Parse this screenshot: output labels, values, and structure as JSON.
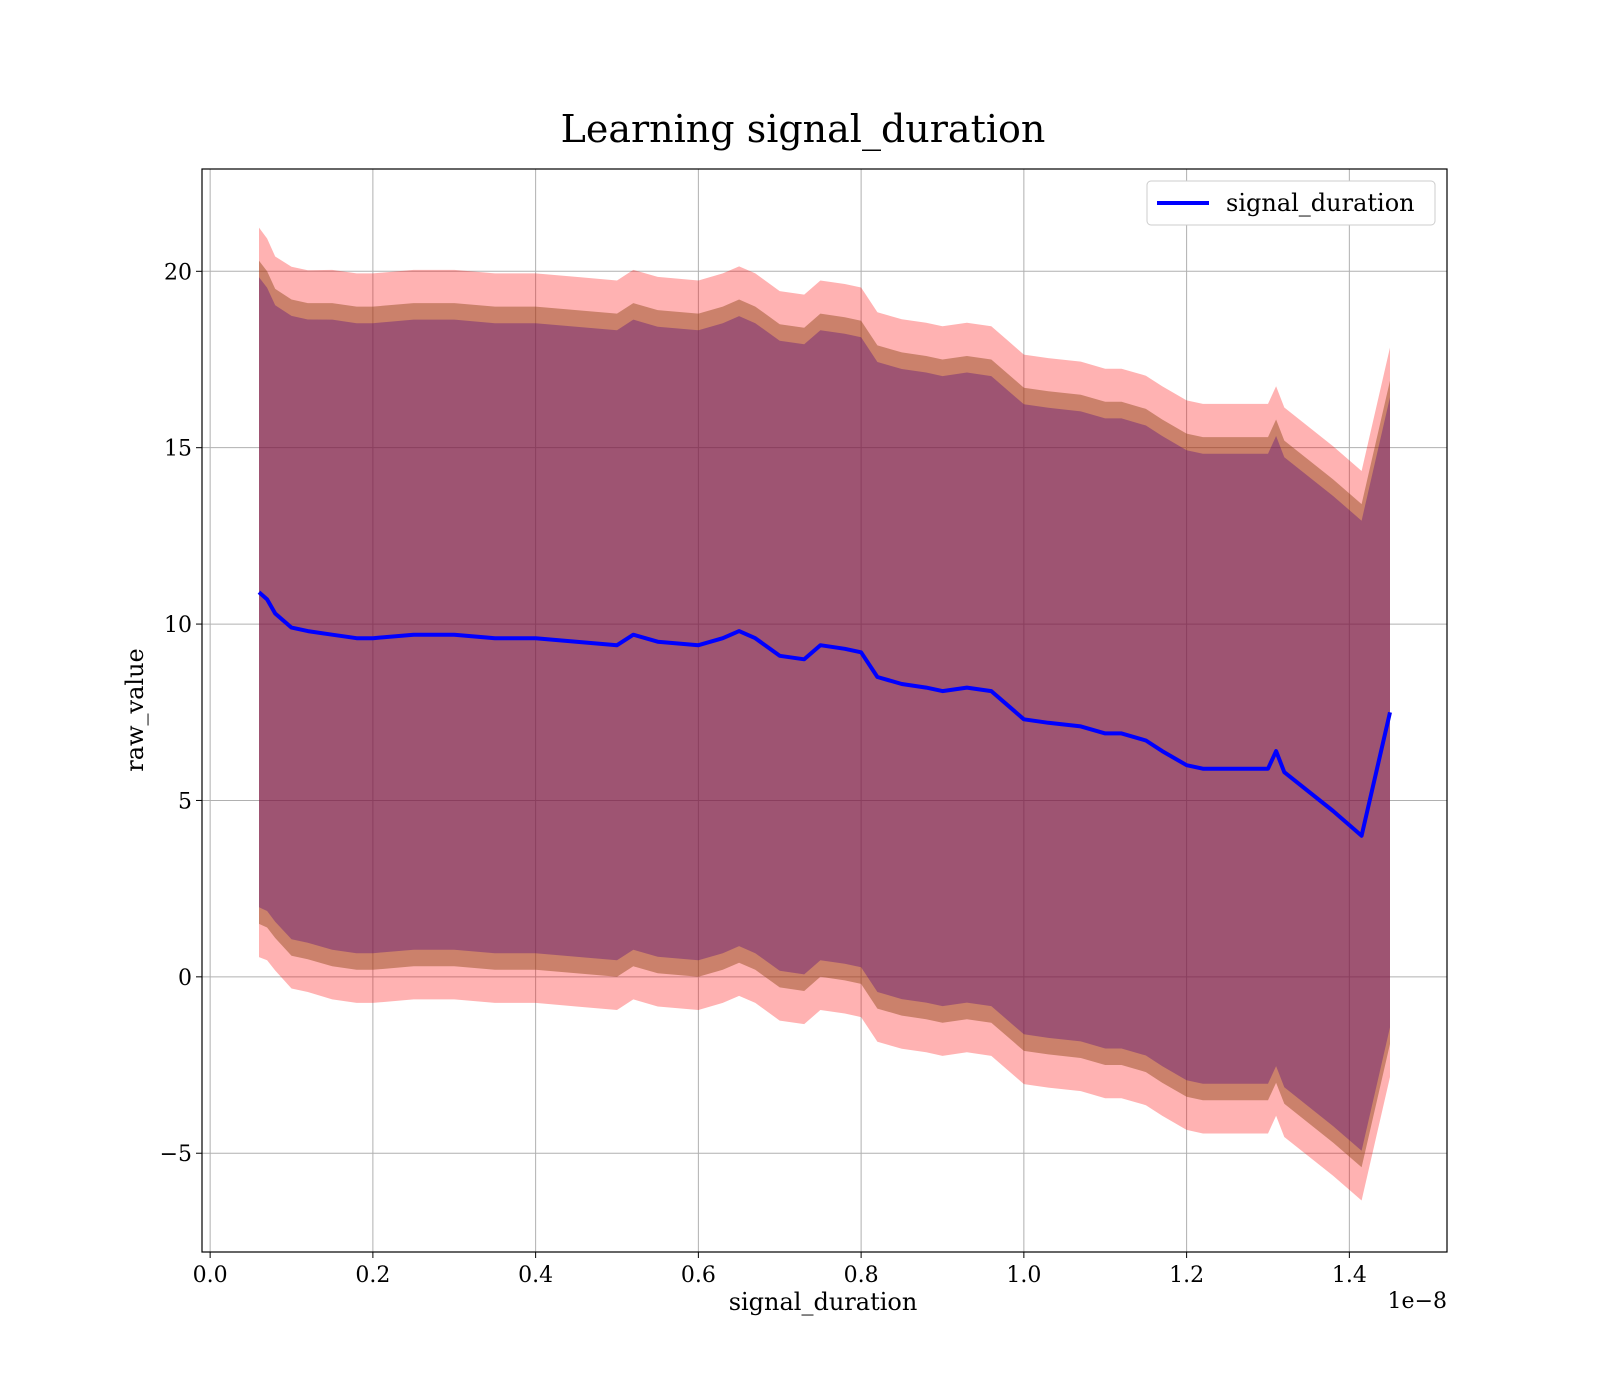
{
  "chart_data": {
    "type": "line",
    "title": "Learning signal_duration",
    "xlabel": "signal_duration",
    "ylabel": "raw_value",
    "x_offset_label": "1e−8",
    "xlim": [
      -0.01,
      1.52
    ],
    "ylim": [
      -7.8,
      22.9
    ],
    "x_ticks": [
      0.0,
      0.2,
      0.4,
      0.6,
      0.8,
      1.0,
      1.2,
      1.4
    ],
    "x_tick_labels": [
      "0.0",
      "0.2",
      "0.4",
      "0.6",
      "0.8",
      "1.0",
      "1.2",
      "1.4"
    ],
    "y_ticks": [
      -5,
      0,
      5,
      10,
      15,
      20
    ],
    "y_tick_labels": [
      "−5",
      "0",
      "5",
      "10",
      "15",
      "20"
    ],
    "grid": true,
    "legend": {
      "position": "top-right",
      "entries": [
        "signal_duration"
      ]
    },
    "colors": {
      "line": "#0000ff",
      "band_outer": "#ff0000",
      "band_middle": "#8b4513",
      "band_inner": "#4b0082",
      "grid": "#b0b0b0"
    },
    "series": [
      {
        "name": "signal_duration",
        "x": [
          0.06,
          0.07,
          0.08,
          0.1,
          0.12,
          0.15,
          0.18,
          0.2,
          0.25,
          0.3,
          0.35,
          0.4,
          0.45,
          0.5,
          0.52,
          0.55,
          0.6,
          0.63,
          0.65,
          0.67,
          0.7,
          0.73,
          0.75,
          0.78,
          0.8,
          0.82,
          0.85,
          0.88,
          0.9,
          0.93,
          0.96,
          0.98,
          1.0,
          1.03,
          1.07,
          1.1,
          1.12,
          1.15,
          1.17,
          1.2,
          1.22,
          1.25,
          1.27,
          1.3,
          1.31,
          1.32,
          1.38,
          1.415,
          1.45
        ],
        "y": [
          10.9,
          10.7,
          10.3,
          9.9,
          9.8,
          9.7,
          9.6,
          9.6,
          9.7,
          9.7,
          9.6,
          9.6,
          9.5,
          9.4,
          9.7,
          9.5,
          9.4,
          9.6,
          9.8,
          9.6,
          9.1,
          9.0,
          9.4,
          9.3,
          9.2,
          8.5,
          8.3,
          8.2,
          8.1,
          8.2,
          8.1,
          7.7,
          7.3,
          7.2,
          7.1,
          6.9,
          6.9,
          6.7,
          6.4,
          6.0,
          5.9,
          5.9,
          5.9,
          5.9,
          6.4,
          5.8,
          4.7,
          4.0,
          7.5
        ],
        "std": [
          9.4,
          9.3,
          9.2,
          9.3,
          9.3,
          9.4,
          9.4,
          9.4,
          9.4,
          9.4,
          9.4,
          9.4,
          9.4,
          9.4,
          9.4,
          9.4,
          9.4,
          9.4,
          9.4,
          9.4,
          9.4,
          9.4,
          9.4,
          9.4,
          9.4,
          9.4,
          9.4,
          9.4,
          9.4,
          9.4,
          9.4,
          9.4,
          9.4,
          9.4,
          9.4,
          9.4,
          9.4,
          9.4,
          9.4,
          9.4,
          9.4,
          9.4,
          9.4,
          9.4,
          9.4,
          9.4,
          9.4,
          9.4,
          9.4
        ]
      }
    ]
  }
}
